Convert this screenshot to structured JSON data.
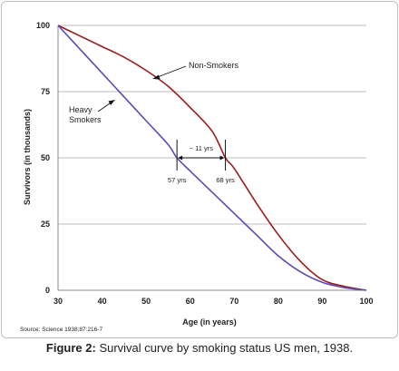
{
  "chart_data": {
    "type": "line",
    "xlabel": "Age (in years)",
    "ylabel": "Survivors (in thousands)",
    "xlim": [
      30,
      100
    ],
    "ylim": [
      0,
      100
    ],
    "xticks": [
      30,
      40,
      50,
      60,
      70,
      80,
      90,
      100
    ],
    "yticks": [
      0,
      25,
      50,
      75,
      100
    ],
    "grid": "horizontal",
    "series": [
      {
        "name": "Non-Smokers",
        "color": "#9b1c1c",
        "x": [
          30,
          35,
          40,
          45,
          50,
          55,
          60,
          65,
          68,
          70,
          75,
          80,
          85,
          90,
          95,
          100
        ],
        "y": [
          100,
          96,
          92,
          88,
          83,
          77,
          69,
          60,
          50,
          46,
          33,
          21,
          11,
          4,
          1.5,
          0
        ]
      },
      {
        "name": "Heavy Smokers",
        "color": "#5a4bb5",
        "x": [
          30,
          35,
          40,
          45,
          50,
          55,
          57,
          60,
          65,
          70,
          75,
          80,
          85,
          90,
          95,
          100
        ],
        "y": [
          100,
          91,
          82,
          73,
          64,
          55,
          50,
          45,
          37,
          29,
          21,
          13,
          7,
          3,
          1,
          0
        ]
      }
    ],
    "annotations": {
      "gap_label": "~ 11 yrs",
      "left_marker_label": "57 yrs",
      "right_marker_label": "68 yrs",
      "left_marker_x": 57,
      "right_marker_x": 68,
      "marker_y": 50,
      "nonsmokers_label": "Non-Smokers",
      "heavy_label_line1": "Heavy",
      "heavy_label_line2": "Smokers"
    },
    "source": "Source: Science 1938;87:216-7"
  },
  "caption": {
    "prefix": "Figure 2:",
    "text": " Survival curve by smoking status US men, 1938."
  }
}
